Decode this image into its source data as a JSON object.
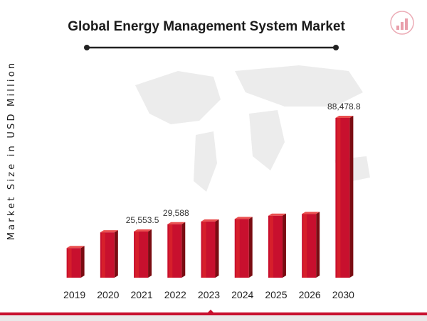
{
  "colors": {
    "bar_front": "#c8102e",
    "bar_highlight": "#e02a2a",
    "bar_side": "#7a0c12",
    "bar_top": "#ea5050",
    "bottom_strip": "#c8102e",
    "map": "#ececec",
    "logo": "#c8102e"
  },
  "icons": {
    "logo": "chart-logo-icon"
  },
  "chart_data": {
    "type": "bar",
    "title": "Global Energy Management System Market",
    "xlabel": "",
    "ylabel": "Market Size in USD Million",
    "categories": [
      "2019",
      "2020",
      "2021",
      "2022",
      "2023",
      "2024",
      "2025",
      "2026",
      "2030"
    ],
    "values": [
      16400,
      25100,
      25553.5,
      29588,
      31100,
      32500,
      34300,
      35300,
      88478.8
    ],
    "data_labels": [
      "",
      "",
      "25,553.5",
      "29,588",
      "",
      "",
      "",
      "",
      "88,478.8"
    ],
    "ylim": [
      0,
      40000
    ],
    "grid": false,
    "legend": "none"
  }
}
